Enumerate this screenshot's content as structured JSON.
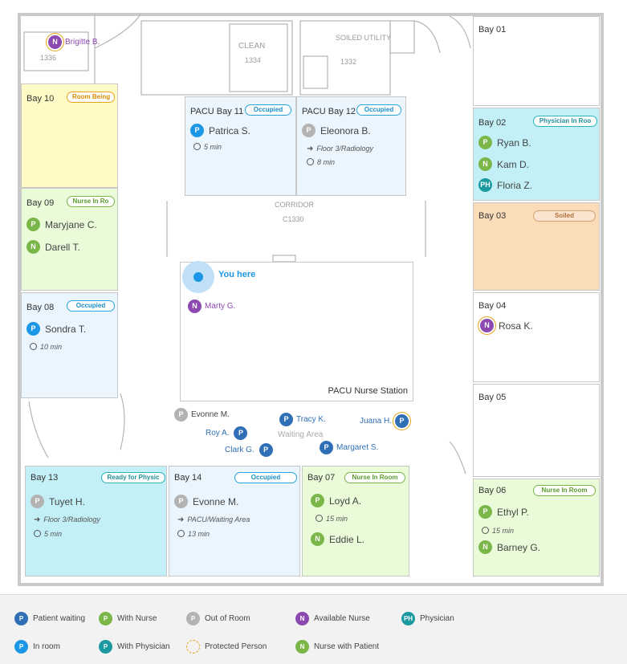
{
  "floor_labels": {
    "clean": "CLEAN",
    "clean_no": "1334",
    "soiled": "SOILED UTILITY",
    "soiled_no": "1332",
    "stair_no": "1336",
    "corridor": "CORRIDOR",
    "corridor_no": "C1330"
  },
  "floating_people": {
    "brigitte": "Brigitte B.",
    "evonne": "Evonne M.",
    "tracy": "Tracy K.",
    "juana": "Juana H.",
    "roy": "Roy A.",
    "margaret": "Margaret S.",
    "clark": "Clark G."
  },
  "station": {
    "you_here": "You here",
    "marty": "Marty G.",
    "title": "PACU Nurse Station"
  },
  "waiting_area": "Waiting Area",
  "rooms": {
    "bay10": {
      "title": "Bay 10",
      "badge": "Room Being"
    },
    "bay09": {
      "title": "Bay 09",
      "badge": "Nurse In Ro",
      "p1": "Maryjane C.",
      "p2": "Darell T."
    },
    "bay08": {
      "title": "Bay 08",
      "badge": "Occupied",
      "p1": "Sondra T.",
      "time": "10 min"
    },
    "pacu11": {
      "title": "PACU Bay 11",
      "badge": "Occupied",
      "p1": "Patrica S.",
      "time": "5 min"
    },
    "pacu12": {
      "title": "PACU Bay 12",
      "badge": "Occupied",
      "p1": "Eleonora B.",
      "loc": "Floor 3/Radiology",
      "time": "8 min"
    },
    "bay01": {
      "title": "Bay 01"
    },
    "bay02": {
      "title": "Bay 02",
      "badge": "Physician In Roo",
      "p1": "Ryan B.",
      "p2": "Kam D.",
      "p3": "Floria Z."
    },
    "bay03": {
      "title": "Bay 03",
      "badge": "Soiled"
    },
    "bay04": {
      "title": "Bay 04",
      "p1": "Rosa K."
    },
    "bay05": {
      "title": "Bay 05"
    },
    "bay06": {
      "title": "Bay 06",
      "badge": "Nurse In Room",
      "p1": "Ethyl P.",
      "time": "15 min",
      "p2": "Barney G."
    },
    "bay13": {
      "title": "Bay 13",
      "badge": "Ready for Physic",
      "p1": "Tuyet H.",
      "loc": "Floor 3/Radiology",
      "time": "5 min"
    },
    "bay14": {
      "title": "Bay 14",
      "badge": "Occupied",
      "p1": "Evonne M.",
      "loc": "PACU/Waiting Area",
      "time": "13 min"
    },
    "bay07": {
      "title": "Bay 07",
      "badge": "Nurse In Room",
      "p1": "Loyd A.",
      "time": "15 min",
      "p2": "Eddie L."
    }
  },
  "icons": {
    "patient": "P",
    "nurse": "N",
    "physician": "PH"
  },
  "legend": {
    "patient_waiting": "Patient waiting",
    "with_nurse": "With Nurse",
    "out_of_room": "Out of Room",
    "available_nurse": "Available Nurse",
    "physician": "Physician",
    "in_room": "In room",
    "with_physician": "With Physician",
    "protected_person": "Protected Person",
    "nurse_with_patient": "Nurse with Patient"
  },
  "colors": {
    "patient_waiting": "#2f6fb6",
    "in_room": "#1b97e6",
    "with_nurse": "#7ab648",
    "out_of_room": "#b3b3b3",
    "available_nurse": "#8c4ab0",
    "physician": "#1a9aa0",
    "protected": "#e6a21d",
    "room_yellow": "#fffbc6",
    "room_green": "#eafbd9",
    "room_blue": "#eaf5fd",
    "room_cyan": "#c2f0f6",
    "room_orange": "#fbdcb9"
  }
}
